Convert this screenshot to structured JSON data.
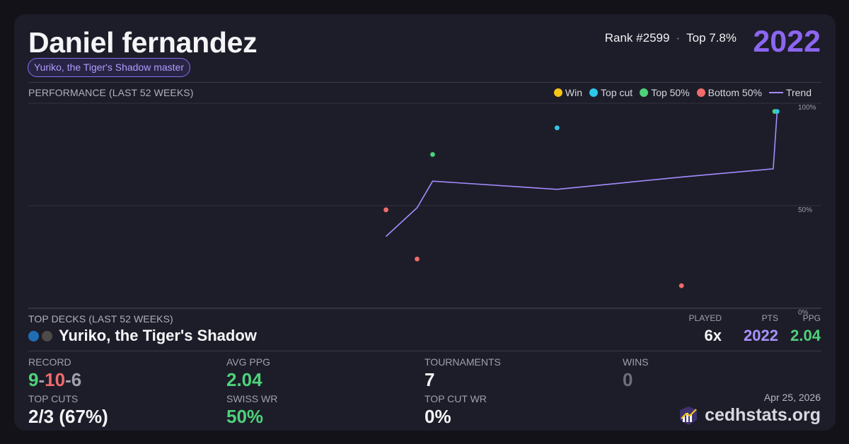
{
  "player": {
    "name": "Daniel fernandez",
    "badge": "Yuriko, the Tiger's Shadow master",
    "rank": "Rank #2599",
    "top_percent": "Top 7.8%",
    "points": "2022"
  },
  "performance": {
    "title": "PERFORMANCE (LAST 52 WEEKS)",
    "legend": [
      {
        "label": "Win",
        "color": "#f5c518",
        "kind": "dot"
      },
      {
        "label": "Top cut",
        "color": "#2ec7e8",
        "kind": "dot"
      },
      {
        "label": "Top 50%",
        "color": "#4dd27a",
        "kind": "dot"
      },
      {
        "label": "Bottom 50%",
        "color": "#f06b6b",
        "kind": "dot"
      },
      {
        "label": "Trend",
        "color": "#a48cff",
        "kind": "line"
      }
    ]
  },
  "chart_data": {
    "type": "scatter",
    "y_ticks": [
      "100%",
      "50%",
      "0%"
    ],
    "ylim": [
      0,
      100
    ],
    "xlim": [
      1,
      52
    ],
    "grid": true,
    "legend_placement": "top-right",
    "points": [
      {
        "week": 24,
        "pct": 48,
        "result": "Bottom 50%"
      },
      {
        "week": 26,
        "pct": 24,
        "result": "Bottom 50%"
      },
      {
        "week": 27,
        "pct": 75,
        "result": "Top 50%"
      },
      {
        "week": 35,
        "pct": 88,
        "result": "Top cut"
      },
      {
        "week": 43,
        "pct": 11,
        "result": "Bottom 50%"
      },
      {
        "week": 49,
        "pct": 96,
        "result": "Top 50%"
      },
      {
        "week": 49.15,
        "pct": 96,
        "result": "Top cut"
      }
    ],
    "trend": [
      {
        "week": 24,
        "pct": 35
      },
      {
        "week": 26,
        "pct": 49
      },
      {
        "week": 27,
        "pct": 62
      },
      {
        "week": 35,
        "pct": 58
      },
      {
        "week": 43,
        "pct": 64
      },
      {
        "week": 48.9,
        "pct": 68
      },
      {
        "week": 49.15,
        "pct": 96
      }
    ]
  },
  "top_decks": {
    "title": "TOP DECKS (LAST 52 WEEKS)",
    "columns": {
      "played": "PLAYED",
      "pts": "PTS",
      "ppg": "PPG"
    },
    "deck": {
      "name": "Yuriko, the Tiger's Shadow",
      "colors": [
        "#1f6eb5",
        "#4e4a48"
      ],
      "played": "6x",
      "pts": "2022",
      "ppg": "2.04"
    }
  },
  "stats": {
    "record_label": "RECORD",
    "record_wins": "9",
    "record_sep1": "-",
    "record_losses": "10",
    "record_sep2": "-",
    "record_draws": "6",
    "avg_ppg_label": "AVG PPG",
    "avg_ppg": "2.04",
    "tournaments_label": "TOURNAMENTS",
    "tournaments": "7",
    "wins_label": "WINS",
    "wins": "0",
    "top_cuts_label": "TOP CUTS",
    "top_cuts": "2/3 (67%)",
    "swiss_wr_label": "SWISS WR",
    "swiss_wr": "50%",
    "top_cut_wr_label": "TOP CUT WR",
    "top_cut_wr": "0%"
  },
  "footer": {
    "date": "Apr 25, 2026",
    "brand": "cedhstats.org",
    "logo_icon": "chart-logo-icon"
  }
}
